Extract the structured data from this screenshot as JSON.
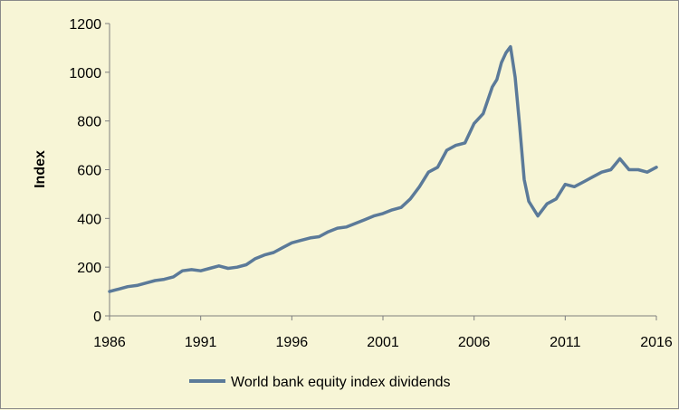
{
  "chart_data": {
    "type": "line",
    "title": "",
    "xlabel": "",
    "ylabel": "Index",
    "xlim": [
      1986,
      2016
    ],
    "ylim": [
      0,
      1200
    ],
    "x_ticks": [
      "1986",
      "1991",
      "1996",
      "2001",
      "2006",
      "2011",
      "2016"
    ],
    "y_ticks": [
      "0",
      "200",
      "400",
      "600",
      "800",
      "1000",
      "1200"
    ],
    "grid": false,
    "legend_position": "bottom",
    "colors": {
      "series": "#5b7a99",
      "background": "#f7f5d6",
      "axis": "#7f7f7f"
    },
    "series": [
      {
        "name": "World bank equity index dividends",
        "x": [
          1986.0,
          1986.5,
          1987.0,
          1987.5,
          1988.0,
          1988.5,
          1989.0,
          1989.5,
          1990.0,
          1990.5,
          1991.0,
          1991.5,
          1992.0,
          1992.5,
          1993.0,
          1993.5,
          1994.0,
          1994.5,
          1995.0,
          1995.5,
          1996.0,
          1996.5,
          1997.0,
          1997.5,
          1998.0,
          1998.5,
          1999.0,
          1999.5,
          2000.0,
          2000.5,
          2001.0,
          2001.5,
          2002.0,
          2002.5,
          2003.0,
          2003.5,
          2004.0,
          2004.5,
          2005.0,
          2005.5,
          2006.0,
          2006.5,
          2007.0,
          2007.25,
          2007.5,
          2007.75,
          2008.0,
          2008.25,
          2008.5,
          2008.75,
          2009.0,
          2009.5,
          2010.0,
          2010.5,
          2011.0,
          2011.5,
          2012.0,
          2012.5,
          2013.0,
          2013.5,
          2014.0,
          2014.5,
          2015.0,
          2015.5,
          2016.0
        ],
        "values": [
          100,
          110,
          120,
          125,
          135,
          145,
          150,
          160,
          185,
          190,
          185,
          195,
          205,
          195,
          200,
          210,
          235,
          250,
          260,
          280,
          300,
          310,
          320,
          325,
          345,
          360,
          365,
          380,
          395,
          410,
          420,
          435,
          445,
          480,
          530,
          590,
          610,
          680,
          700,
          710,
          790,
          830,
          940,
          970,
          1040,
          1080,
          1105,
          980,
          780,
          560,
          470,
          410,
          460,
          480,
          540,
          530,
          550,
          570,
          590,
          600,
          645,
          600,
          600,
          590,
          610
        ]
      }
    ]
  }
}
